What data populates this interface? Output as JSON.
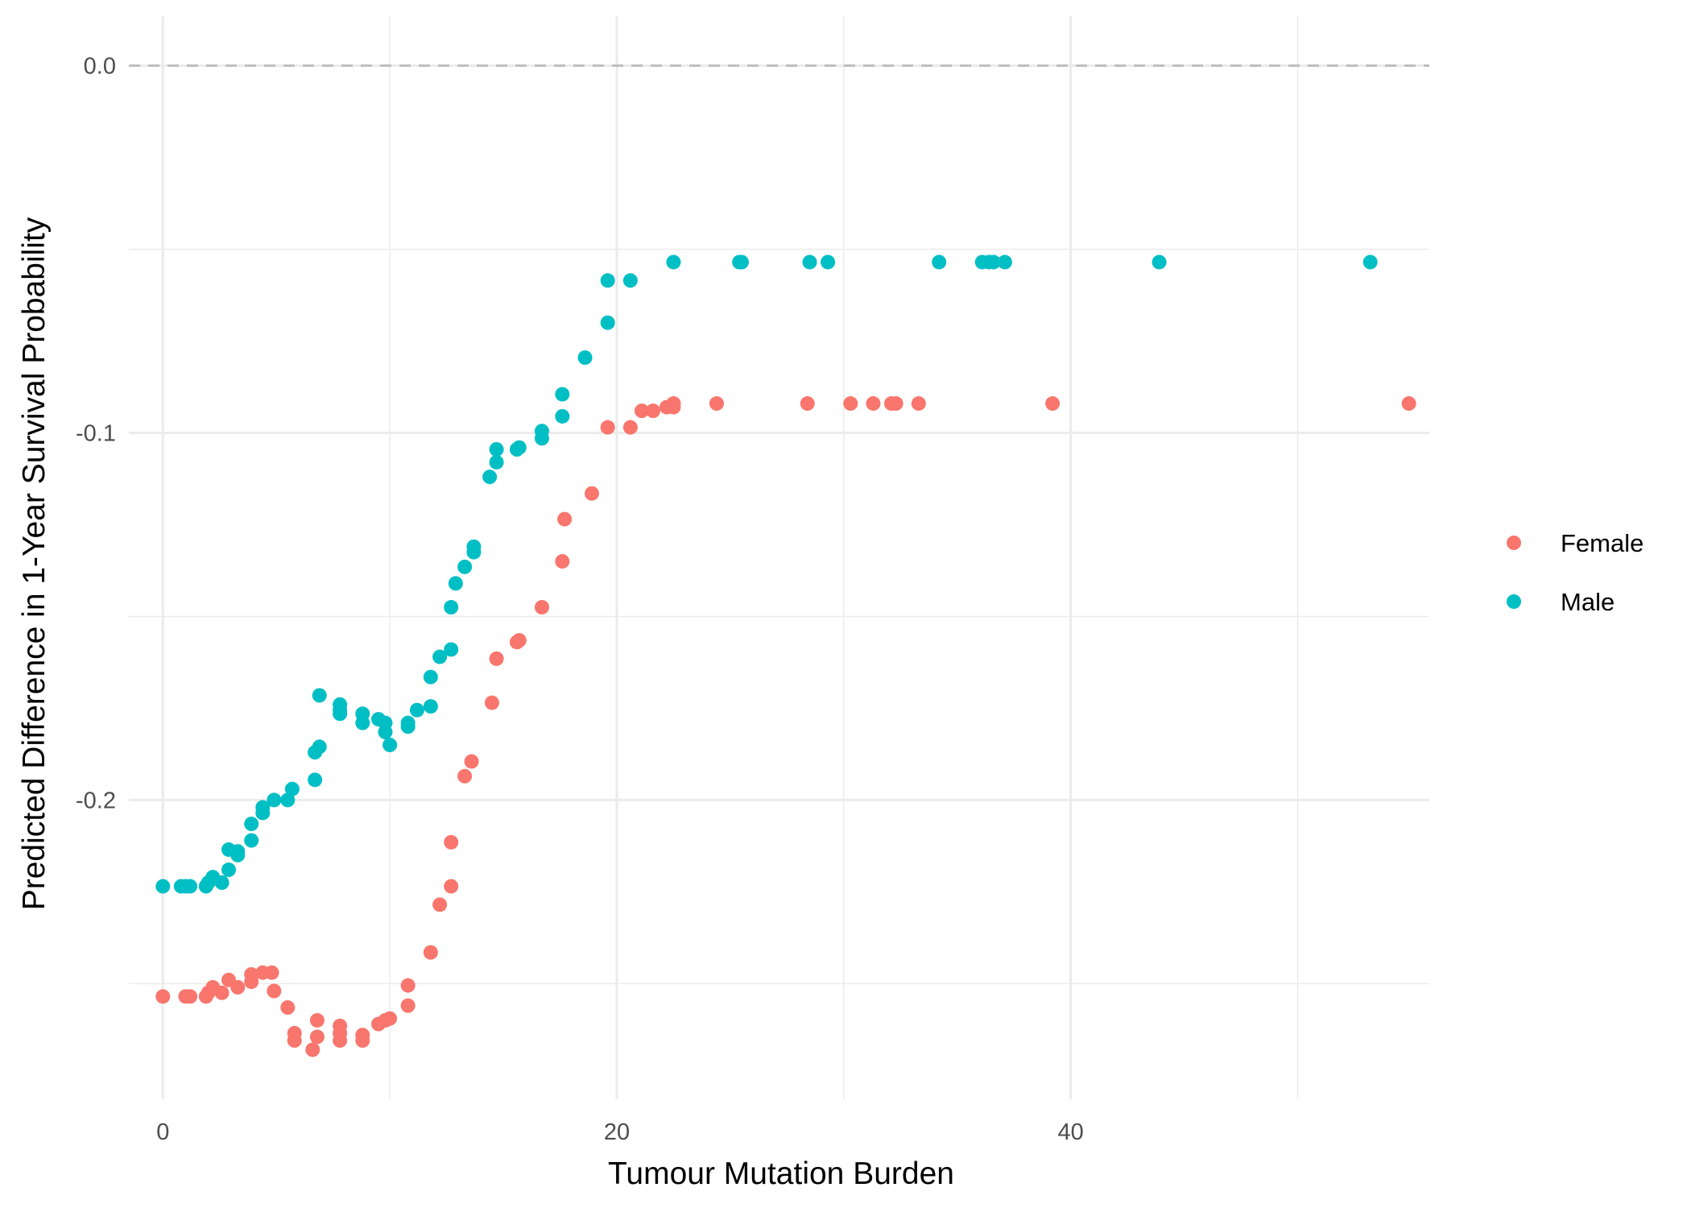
{
  "chart_data": {
    "type": "scatter",
    "title": "",
    "xlabel": "Tumour Mutation Burden",
    "ylabel": "Predicted Difference in 1-Year Survival Probability",
    "xlim": [
      -1.5,
      55.8
    ],
    "ylim": [
      -0.2815,
      0.0135
    ],
    "x_ticks": [
      0,
      20,
      40
    ],
    "x_tick_labels": [
      "0",
      "20",
      "40"
    ],
    "x_minor_ticks": [
      10,
      30,
      50
    ],
    "y_ticks": [
      0.0,
      -0.1,
      -0.2
    ],
    "y_tick_labels": [
      "0.0",
      "-0.1",
      "-0.2"
    ],
    "y_minor_ticks": [
      -0.05,
      -0.15,
      -0.25
    ],
    "reference_line": {
      "y": 0.0,
      "style": "dashed",
      "color": "#bfbfbf"
    },
    "grid": true,
    "legend": {
      "position": "right"
    },
    "series": [
      {
        "name": "Female",
        "color": "#F8766D",
        "points": [
          [
            0.0,
            -0.2535
          ],
          [
            1.0,
            -0.2535
          ],
          [
            1.2,
            -0.2535
          ],
          [
            1.9,
            -0.2535
          ],
          [
            2.0,
            -0.2525
          ],
          [
            2.2,
            -0.251
          ],
          [
            2.6,
            -0.2525
          ],
          [
            2.9,
            -0.249
          ],
          [
            3.3,
            -0.251
          ],
          [
            3.9,
            -0.2475
          ],
          [
            3.9,
            -0.2495
          ],
          [
            4.4,
            -0.247
          ],
          [
            4.8,
            -0.247
          ],
          [
            4.9,
            -0.252
          ],
          [
            5.5,
            -0.2565
          ],
          [
            5.8,
            -0.2635
          ],
          [
            5.8,
            -0.2655
          ],
          [
            6.6,
            -0.268
          ],
          [
            6.8,
            -0.26
          ],
          [
            6.8,
            -0.2645
          ],
          [
            7.8,
            -0.2615
          ],
          [
            7.8,
            -0.2635
          ],
          [
            7.8,
            -0.2655
          ],
          [
            8.8,
            -0.264
          ],
          [
            8.8,
            -0.2655
          ],
          [
            9.5,
            -0.261
          ],
          [
            9.8,
            -0.26
          ],
          [
            10.0,
            -0.2595
          ],
          [
            10.8,
            -0.2505
          ],
          [
            10.8,
            -0.256
          ],
          [
            11.8,
            -0.2415
          ],
          [
            12.2,
            -0.2285
          ],
          [
            12.7,
            -0.2235
          ],
          [
            12.7,
            -0.2115
          ],
          [
            13.3,
            -0.1935
          ],
          [
            13.6,
            -0.1895
          ],
          [
            14.5,
            -0.1735
          ],
          [
            14.7,
            -0.1615
          ],
          [
            15.6,
            -0.157
          ],
          [
            15.7,
            -0.1565
          ],
          [
            16.7,
            -0.1475
          ],
          [
            17.6,
            -0.135
          ],
          [
            17.7,
            -0.1235
          ],
          [
            18.9,
            -0.1165
          ],
          [
            19.6,
            -0.0985
          ],
          [
            20.6,
            -0.0985
          ],
          [
            21.1,
            -0.094
          ],
          [
            21.6,
            -0.094
          ],
          [
            22.2,
            -0.093
          ],
          [
            22.5,
            -0.093
          ],
          [
            22.5,
            -0.092
          ],
          [
            24.4,
            -0.092
          ],
          [
            28.4,
            -0.092
          ],
          [
            30.3,
            -0.092
          ],
          [
            31.3,
            -0.092
          ],
          [
            32.1,
            -0.092
          ],
          [
            32.3,
            -0.092
          ],
          [
            33.3,
            -0.092
          ],
          [
            39.2,
            -0.092
          ],
          [
            54.9,
            -0.092
          ]
        ]
      },
      {
        "name": "Male",
        "color": "#00BFC4",
        "points": [
          [
            0.0,
            -0.2235
          ],
          [
            0.8,
            -0.2235
          ],
          [
            1.0,
            -0.2235
          ],
          [
            1.2,
            -0.2235
          ],
          [
            1.9,
            -0.2235
          ],
          [
            2.0,
            -0.2225
          ],
          [
            2.2,
            -0.221
          ],
          [
            2.6,
            -0.2225
          ],
          [
            2.9,
            -0.219
          ],
          [
            2.9,
            -0.2135
          ],
          [
            3.3,
            -0.214
          ],
          [
            3.3,
            -0.215
          ],
          [
            3.9,
            -0.211
          ],
          [
            3.9,
            -0.2065
          ],
          [
            4.4,
            -0.2035
          ],
          [
            4.4,
            -0.202
          ],
          [
            4.9,
            -0.2
          ],
          [
            5.5,
            -0.2
          ],
          [
            5.7,
            -0.197
          ],
          [
            6.7,
            -0.1945
          ],
          [
            6.7,
            -0.187
          ],
          [
            6.9,
            -0.1855
          ],
          [
            6.9,
            -0.1715
          ],
          [
            7.8,
            -0.174
          ],
          [
            7.8,
            -0.1755
          ],
          [
            7.8,
            -0.1765
          ],
          [
            8.8,
            -0.1765
          ],
          [
            8.8,
            -0.179
          ],
          [
            9.5,
            -0.178
          ],
          [
            9.8,
            -0.179
          ],
          [
            9.8,
            -0.1815
          ],
          [
            10.0,
            -0.185
          ],
          [
            10.8,
            -0.179
          ],
          [
            10.8,
            -0.18
          ],
          [
            11.2,
            -0.1755
          ],
          [
            11.8,
            -0.1745
          ],
          [
            11.8,
            -0.1665
          ],
          [
            12.2,
            -0.161
          ],
          [
            12.7,
            -0.159
          ],
          [
            12.7,
            -0.1475
          ],
          [
            12.9,
            -0.141
          ],
          [
            13.3,
            -0.1365
          ],
          [
            13.7,
            -0.1325
          ],
          [
            13.7,
            -0.131
          ],
          [
            14.4,
            -0.112
          ],
          [
            14.7,
            -0.108
          ],
          [
            14.7,
            -0.1045
          ],
          [
            15.6,
            -0.1045
          ],
          [
            15.7,
            -0.104
          ],
          [
            16.7,
            -0.1015
          ],
          [
            16.7,
            -0.0995
          ],
          [
            17.6,
            -0.0955
          ],
          [
            17.6,
            -0.0895
          ],
          [
            18.6,
            -0.0795
          ],
          [
            19.6,
            -0.07
          ],
          [
            19.6,
            -0.0585
          ],
          [
            20.6,
            -0.0585
          ],
          [
            22.5,
            -0.0535
          ],
          [
            25.4,
            -0.0535
          ],
          [
            25.5,
            -0.0535
          ],
          [
            28.5,
            -0.0535
          ],
          [
            29.3,
            -0.0535
          ],
          [
            34.2,
            -0.0535
          ],
          [
            36.1,
            -0.0535
          ],
          [
            36.4,
            -0.0535
          ],
          [
            36.6,
            -0.0535
          ],
          [
            37.1,
            -0.0535
          ],
          [
            43.9,
            -0.0535
          ],
          [
            53.2,
            -0.0535
          ]
        ]
      }
    ]
  }
}
